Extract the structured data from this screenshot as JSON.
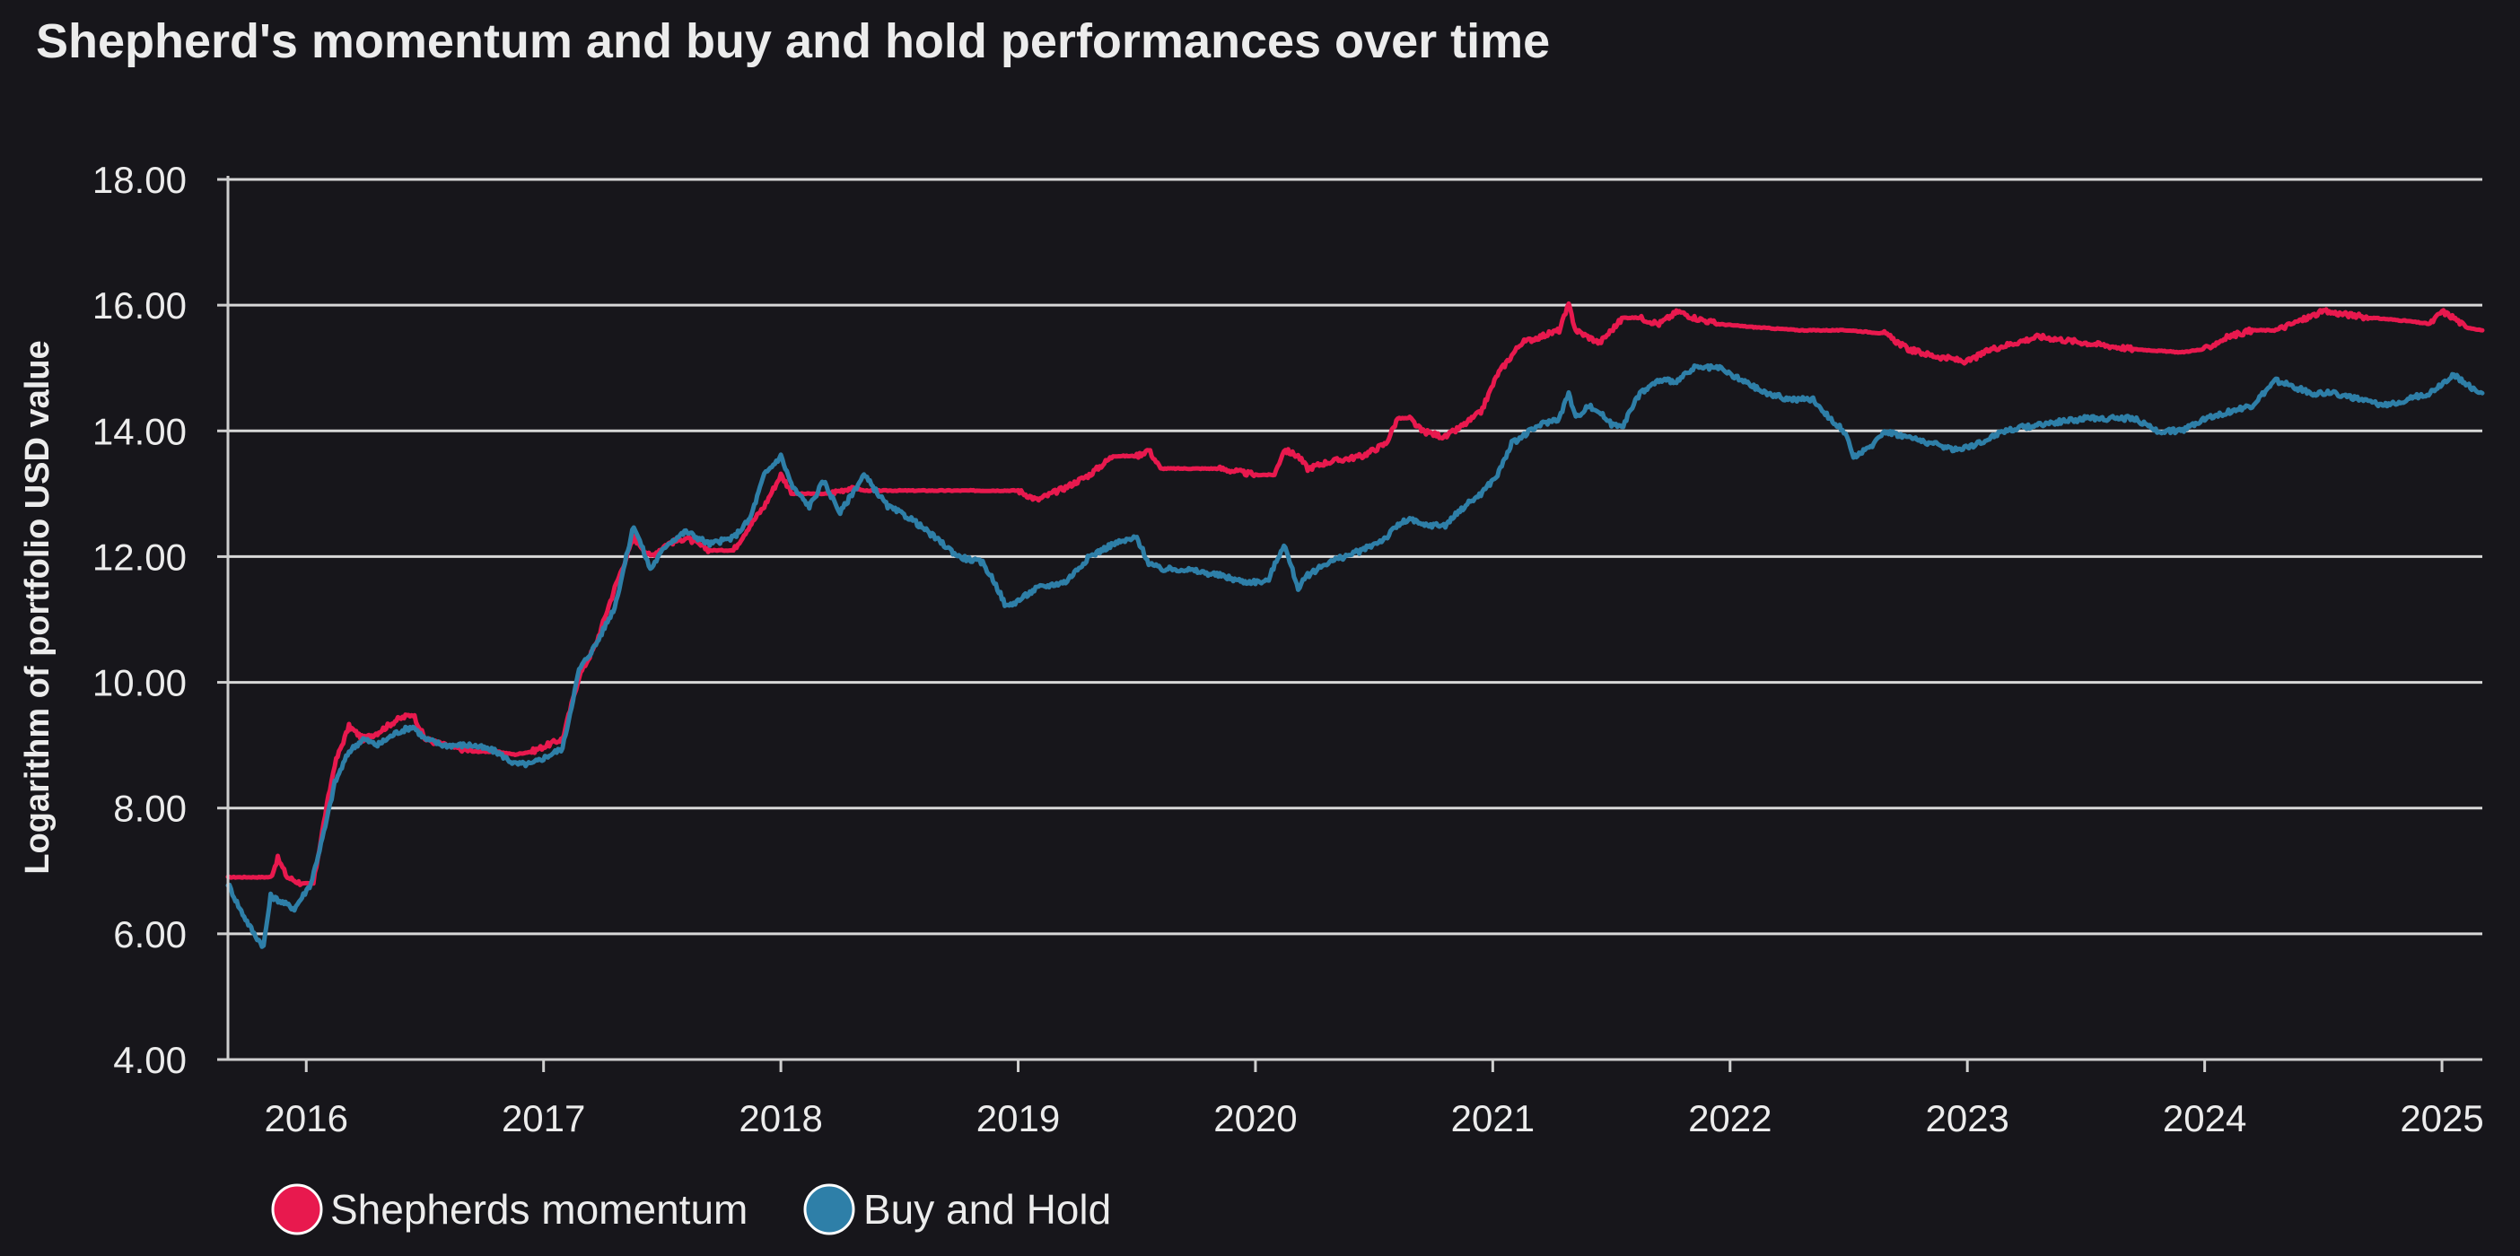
{
  "chart_data": {
    "type": "line",
    "title": "Shepherd's momentum and buy and hold performances over time",
    "xlabel": "",
    "ylabel": "Logarithm of portfolio USD value",
    "xlim": [
      2015.67,
      2025.17
    ],
    "ylim": [
      4.0,
      18.0
    ],
    "yticks": [
      4.0,
      6.0,
      8.0,
      10.0,
      12.0,
      14.0,
      16.0,
      18.0
    ],
    "ytick_labels": [
      "4.00",
      "6.00",
      "8.00",
      "10.00",
      "12.00",
      "14.00",
      "16.00",
      "18.00"
    ],
    "xticks": [
      2016,
      2017,
      2018,
      2019,
      2020,
      2021,
      2022,
      2023,
      2024,
      2025
    ],
    "xtick_labels": [
      "2016",
      "2017",
      "2018",
      "2019",
      "2020",
      "2021",
      "2022",
      "2023",
      "2024",
      "2025"
    ],
    "grid": true,
    "legend_position": "bottom-left",
    "series": [
      {
        "name": "Shepherds momentum",
        "color": "#e8194e",
        "x": [
          2015.67,
          2015.85,
          2015.88,
          2015.92,
          2015.98,
          2016.03,
          2016.08,
          2016.12,
          2016.18,
          2016.24,
          2016.3,
          2016.38,
          2016.45,
          2016.5,
          2016.58,
          2016.7,
          2016.8,
          2016.88,
          2016.95,
          2017.08,
          2017.15,
          2017.22,
          2017.3,
          2017.38,
          2017.45,
          2017.52,
          2017.6,
          2017.7,
          2017.8,
          2017.87,
          2017.93,
          2018.0,
          2018.05,
          2018.12,
          2018.2,
          2018.3,
          2018.35,
          2018.45,
          2018.6,
          2018.8,
          2019.0,
          2019.08,
          2019.2,
          2019.3,
          2019.4,
          2019.5,
          2019.55,
          2019.6,
          2019.7,
          2019.85,
          2020.0,
          2020.08,
          2020.12,
          2020.18,
          2020.22,
          2020.3,
          2020.45,
          2020.55,
          2020.6,
          2020.65,
          2020.7,
          2020.8,
          2020.88,
          2020.95,
          2021.02,
          2021.08,
          2021.12,
          2021.2,
          2021.28,
          2021.32,
          2021.35,
          2021.4,
          2021.45,
          2021.55,
          2021.62,
          2021.7,
          2021.78,
          2021.85,
          2021.95,
          2022.1,
          2022.3,
          2022.5,
          2022.65,
          2022.75,
          2022.85,
          2023.0,
          2023.1,
          2023.2,
          2023.3,
          2023.5,
          2023.7,
          2023.9,
          2024.0,
          2024.1,
          2024.2,
          2024.3,
          2024.5,
          2024.7,
          2024.85,
          2024.95,
          2025.0,
          2025.05,
          2025.1,
          2025.17
        ],
        "values": [
          6.9,
          6.9,
          7.2,
          6.9,
          6.8,
          6.8,
          7.9,
          8.7,
          9.3,
          9.1,
          9.2,
          9.4,
          9.5,
          9.1,
          9.0,
          8.9,
          8.9,
          8.85,
          8.9,
          9.1,
          10.1,
          10.6,
          11.5,
          12.3,
          12.0,
          12.2,
          12.3,
          12.1,
          12.1,
          12.5,
          12.8,
          13.3,
          13.0,
          13.0,
          13.0,
          13.1,
          13.05,
          13.05,
          13.05,
          13.05,
          13.05,
          12.9,
          13.1,
          13.3,
          13.6,
          13.6,
          13.7,
          13.4,
          13.4,
          13.4,
          13.3,
          13.3,
          13.7,
          13.6,
          13.4,
          13.5,
          13.6,
          13.8,
          14.2,
          14.2,
          14.0,
          13.9,
          14.1,
          14.3,
          14.9,
          15.2,
          15.4,
          15.5,
          15.6,
          16.0,
          15.6,
          15.5,
          15.4,
          15.8,
          15.8,
          15.7,
          15.9,
          15.8,
          15.7,
          15.65,
          15.6,
          15.6,
          15.55,
          15.3,
          15.2,
          15.1,
          15.3,
          15.4,
          15.5,
          15.4,
          15.3,
          15.25,
          15.3,
          15.5,
          15.6,
          15.6,
          15.9,
          15.8,
          15.75,
          15.7,
          15.9,
          15.8,
          15.65,
          15.6
        ]
      },
      {
        "name": "Buy and Hold",
        "color": "#2e7fa8",
        "x": [
          2015.67,
          2015.72,
          2015.78,
          2015.82,
          2015.85,
          2015.9,
          2015.95,
          2016.02,
          2016.08,
          2016.12,
          2016.18,
          2016.24,
          2016.3,
          2016.38,
          2016.45,
          2016.5,
          2016.58,
          2016.7,
          2016.8,
          2016.88,
          2016.95,
          2017.08,
          2017.15,
          2017.22,
          2017.3,
          2017.38,
          2017.45,
          2017.52,
          2017.6,
          2017.7,
          2017.8,
          2017.87,
          2017.93,
          2018.0,
          2018.05,
          2018.12,
          2018.18,
          2018.25,
          2018.35,
          2018.45,
          2018.55,
          2018.65,
          2018.75,
          2018.85,
          2018.9,
          2018.95,
          2019.0,
          2019.08,
          2019.2,
          2019.3,
          2019.4,
          2019.5,
          2019.55,
          2019.6,
          2019.7,
          2019.85,
          2019.95,
          2020.05,
          2020.12,
          2020.18,
          2020.22,
          2020.3,
          2020.45,
          2020.55,
          2020.6,
          2020.65,
          2020.7,
          2020.8,
          2020.88,
          2020.95,
          2021.02,
          2021.08,
          2021.12,
          2021.2,
          2021.28,
          2021.32,
          2021.35,
          2021.4,
          2021.45,
          2021.5,
          2021.55,
          2021.62,
          2021.7,
          2021.78,
          2021.85,
          2021.95,
          2022.05,
          2022.15,
          2022.25,
          2022.35,
          2022.42,
          2022.48,
          2022.52,
          2022.58,
          2022.65,
          2022.75,
          2022.85,
          2022.95,
          2023.05,
          2023.15,
          2023.3,
          2023.5,
          2023.7,
          2023.8,
          2023.9,
          2024.0,
          2024.1,
          2024.2,
          2024.3,
          2024.45,
          2024.55,
          2024.65,
          2024.75,
          2024.85,
          2024.95,
          2025.05,
          2025.12,
          2025.17
        ],
        "values": [
          6.8,
          6.4,
          6.0,
          5.8,
          6.6,
          6.5,
          6.4,
          6.8,
          7.7,
          8.4,
          8.9,
          9.1,
          9.0,
          9.2,
          9.3,
          9.1,
          9.0,
          9.0,
          8.9,
          8.7,
          8.7,
          8.95,
          10.2,
          10.6,
          11.2,
          12.5,
          11.8,
          12.2,
          12.4,
          12.2,
          12.3,
          12.6,
          13.3,
          13.6,
          13.1,
          12.8,
          13.2,
          12.7,
          13.3,
          12.8,
          12.6,
          12.3,
          12.0,
          11.9,
          11.6,
          11.2,
          11.3,
          11.5,
          11.6,
          12.0,
          12.2,
          12.3,
          11.9,
          11.8,
          11.8,
          11.7,
          11.6,
          11.6,
          12.2,
          11.5,
          11.7,
          11.9,
          12.1,
          12.3,
          12.5,
          12.6,
          12.5,
          12.5,
          12.8,
          13.0,
          13.3,
          13.8,
          13.9,
          14.1,
          14.2,
          14.6,
          14.2,
          14.4,
          14.3,
          14.1,
          14.1,
          14.6,
          14.8,
          14.8,
          15.0,
          15.0,
          14.8,
          14.6,
          14.5,
          14.5,
          14.2,
          14.0,
          13.6,
          13.7,
          14.0,
          13.9,
          13.8,
          13.7,
          13.8,
          14.0,
          14.1,
          14.2,
          14.2,
          14.0,
          14.0,
          14.2,
          14.3,
          14.4,
          14.8,
          14.6,
          14.6,
          14.5,
          14.4,
          14.5,
          14.6,
          14.9,
          14.7,
          14.6
        ]
      }
    ]
  }
}
